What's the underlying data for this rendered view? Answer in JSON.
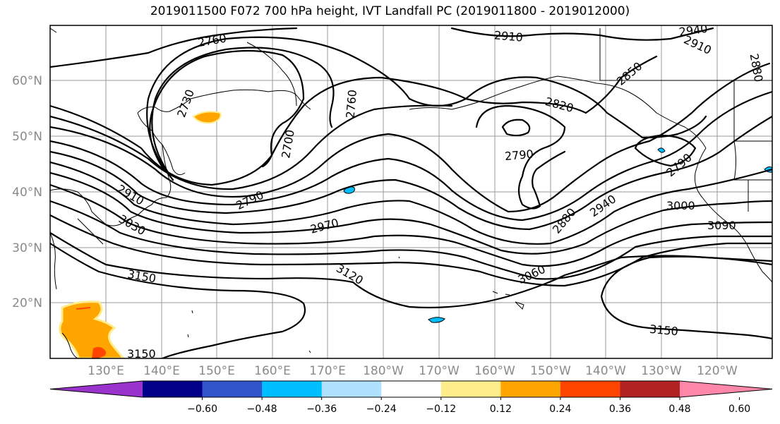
{
  "title": "2019011500 F072 700 hPa height, IVT Landfall PC (2019011800 - 2019012000)",
  "lat_labels": [
    "60°N",
    "50°N",
    "40°N",
    "30°N",
    "20°N"
  ],
  "lon_labels": [
    "130°E",
    "140°E",
    "150°E",
    "160°E",
    "170°E",
    "180°W",
    "170°W",
    "160°W",
    "150°W",
    "140°W",
    "130°W",
    "120°W"
  ],
  "contour_labels": [
    "2760",
    "2910",
    "2940",
    "2910",
    "2880",
    "2850",
    "2730",
    "2760",
    "2820",
    "2700",
    "2790",
    "2790",
    "2880",
    "2910",
    "2790",
    "2940",
    "3000",
    "2970",
    "3030",
    "3090",
    "3060",
    "3120",
    "3150",
    "3150",
    "3150"
  ],
  "colorbar": {
    "ticks": [
      "−0.60",
      "−0.48",
      "−0.36",
      "−0.24",
      "−0.12",
      "0.12",
      "0.24",
      "0.36",
      "0.48",
      "0.60"
    ],
    "colors": [
      "#9933cc",
      "#000088",
      "#3355cc",
      "#00bfff",
      "#b0e2ff",
      "#ffffff",
      "#ffec8b",
      "#ffa500",
      "#ff4500",
      "#b22222",
      "#ff88aa"
    ]
  }
}
